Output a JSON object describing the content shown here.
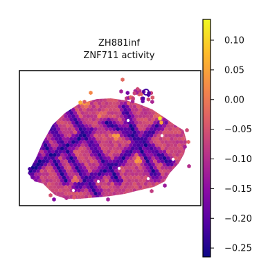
{
  "chart_data": {
    "type": "heatmap",
    "subtype": "spatial hexbin map",
    "title_line1": "ZH881inf",
    "title_line2": "ZNF711 activity",
    "xlabel": "",
    "ylabel": "",
    "axis_ticks": "none",
    "colormap": "plasma",
    "color_stops": [
      "#0d0887",
      "#5302a3",
      "#8b0aa5",
      "#b83289",
      "#db5c68",
      "#f48849",
      "#febd2a",
      "#f0f921"
    ],
    "colorbar": {
      "range": [
        -0.265,
        0.135
      ],
      "ticks": [
        0.1,
        0.05,
        0.0,
        -0.05,
        -0.1,
        -0.15,
        -0.2,
        -0.25
      ],
      "tick_labels": [
        "0.10",
        "0.05",
        "0.00",
        "−0.05",
        "−0.10",
        "−0.15",
        "−0.20",
        "−0.25"
      ]
    },
    "value_summary": {
      "dominant_range": [
        -0.15,
        -0.05
      ],
      "min_observed": -0.26,
      "max_observed": 0.12,
      "high_regions": "scattered orange/yellow spots along upper edge and center",
      "low_regions": "dark purple diagonal bands, strongest at left edge"
    }
  }
}
